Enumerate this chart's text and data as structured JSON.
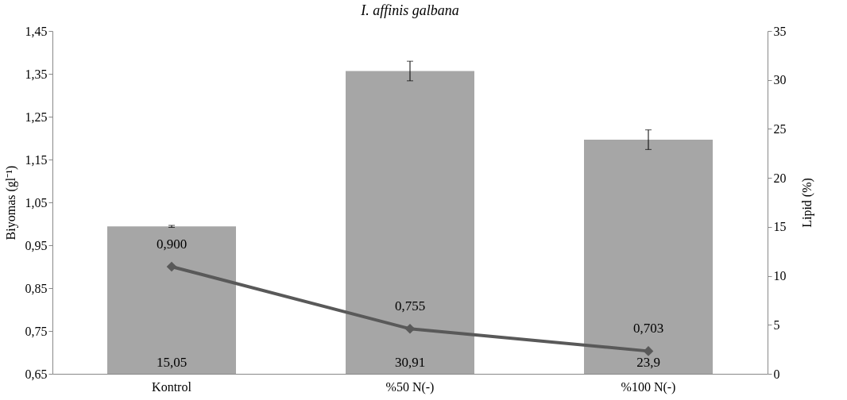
{
  "chart_data": {
    "type": "bar",
    "title": "I. affinis galbana",
    "ylabel": "Biyomas (gl⁻¹)",
    "y2label": "Lipid (%)",
    "categories": [
      "Kontrol",
      "%50 N(-)",
      "%100 N(-)"
    ],
    "series": [
      {
        "axis": "y2",
        "color": "#a6a6a6",
        "values": [
          15.05,
          30.91,
          23.9
        ],
        "errors": [
          0.1,
          1,
          1
        ],
        "value_labels": [
          "15,05",
          "30,91",
          "23,9"
        ]
      },
      {
        "type": "line",
        "axis": "y",
        "color": "#595959",
        "marker": "diamond",
        "values": [
          0.9,
          0.755,
          0.703
        ],
        "value_labels": [
          "0,900",
          "0,755",
          "0,703"
        ]
      }
    ],
    "ylim": [
      0.65,
      1.45
    ],
    "yticks": [
      {
        "value": 0.65,
        "label": "0,65"
      },
      {
        "value": 0.75,
        "label": "0,75"
      },
      {
        "value": 0.85,
        "label": "0,85"
      },
      {
        "value": 0.95,
        "label": "0,95"
      },
      {
        "value": 1.05,
        "label": "1,05"
      },
      {
        "value": 1.15,
        "label": "1,15"
      },
      {
        "value": 1.25,
        "label": "1,25"
      },
      {
        "value": 1.35,
        "label": "1,35"
      },
      {
        "value": 1.45,
        "label": "1,45"
      }
    ],
    "y2lim": [
      0,
      35
    ],
    "y2ticks": [
      0,
      5,
      10,
      15,
      20,
      25,
      30,
      35
    ],
    "grid": false
  }
}
